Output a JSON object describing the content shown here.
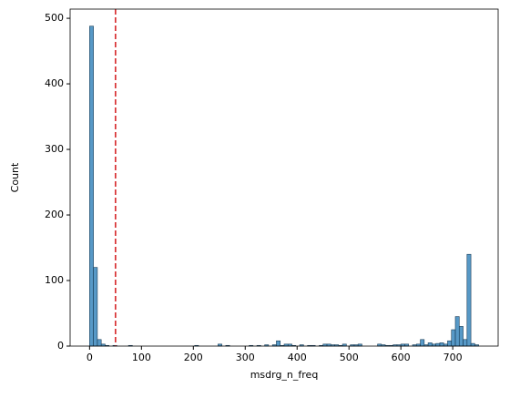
{
  "chart_data": {
    "type": "histogram",
    "x_label": "msdrg_n_freq",
    "y_label": "Count",
    "bins": [
      0,
      7.5,
      15,
      22.5,
      30,
      37.5,
      45,
      52.5,
      60,
      67.5,
      75,
      82.5,
      90,
      97.5,
      105,
      112.5,
      120,
      127.5,
      135,
      142.5,
      150,
      157.5,
      165,
      172.5,
      180,
      187.5,
      195,
      202.5,
      210,
      217.5,
      225,
      232.5,
      240,
      247.5,
      255,
      262.5,
      270,
      277.5,
      285,
      292.5,
      300,
      307.5,
      315,
      322.5,
      330,
      337.5,
      345,
      352.5,
      360,
      367.5,
      375,
      382.5,
      390,
      397.5,
      405,
      412.5,
      420,
      427.5,
      435,
      442.5,
      450,
      457.5,
      465,
      472.5,
      480,
      487.5,
      495,
      502.5,
      510,
      517.5,
      525,
      532.5,
      540,
      547.5,
      555,
      562.5,
      570,
      577.5,
      585,
      592.5,
      600,
      607.5,
      615,
      622.5,
      630,
      637.5,
      645,
      652.5,
      660,
      667.5,
      675,
      682.5,
      690,
      697.5,
      705,
      712.5,
      720,
      727.5,
      735,
      742.5,
      750
    ],
    "values": [
      488,
      120,
      10,
      3,
      1,
      0,
      1,
      0,
      0,
      0,
      1,
      0,
      0,
      0,
      0,
      0,
      0,
      0,
      0,
      0,
      0,
      0,
      0,
      0,
      0,
      0,
      0,
      1,
      0,
      0,
      0,
      0,
      0,
      3,
      0,
      1,
      0,
      0,
      0,
      0,
      0,
      1,
      0,
      1,
      0,
      2,
      0,
      2,
      8,
      1,
      3,
      3,
      1,
      0,
      2,
      0,
      1,
      1,
      0,
      1,
      3,
      3,
      2,
      2,
      1,
      3,
      0,
      2,
      2,
      3,
      0,
      0,
      0,
      0,
      3,
      2,
      1,
      1,
      2,
      2,
      3,
      3,
      0,
      2,
      3,
      10,
      2,
      5,
      3,
      4,
      5,
      3,
      8,
      25,
      45,
      30,
      10,
      140,
      4,
      2
    ],
    "color": "#1f77b4",
    "threshold": 50,
    "threshold_color": "#d62728",
    "xlim": [
      -37.5,
      787.5
    ],
    "xticks": [
      0,
      100,
      200,
      300,
      400,
      500,
      600,
      700
    ],
    "ylim": [
      0,
      514
    ],
    "yticks": [
      0,
      100,
      200,
      300,
      400,
      500
    ]
  }
}
